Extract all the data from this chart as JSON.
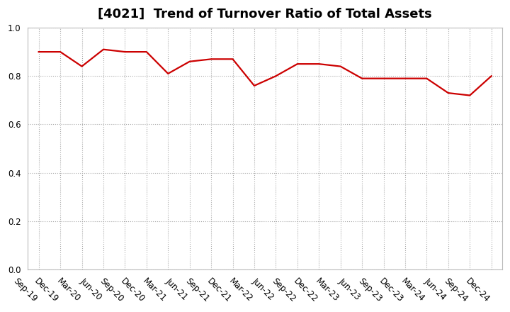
{
  "title": "[4021]  Trend of Turnover Ratio of Total Assets",
  "x_labels": [
    "Sep-19",
    "Dec-19",
    "Mar-20",
    "Jun-20",
    "Sep-20",
    "Dec-20",
    "Mar-21",
    "Jun-21",
    "Sep-21",
    "Dec-21",
    "Mar-22",
    "Jun-22",
    "Sep-22",
    "Dec-22",
    "Mar-23",
    "Jun-23",
    "Sep-23",
    "Dec-23",
    "Mar-24",
    "Jun-24",
    "Sep-24",
    "Dec-24"
  ],
  "y_values": [
    0.9,
    0.9,
    0.84,
    0.91,
    0.9,
    0.9,
    0.81,
    0.86,
    0.87,
    0.87,
    0.76,
    0.8,
    0.85,
    0.85,
    0.84,
    0.79,
    0.79,
    0.79,
    0.79,
    0.73,
    0.72,
    0.8
  ],
  "line_color": "#cc0000",
  "line_width": 1.6,
  "ylim": [
    0.0,
    1.0
  ],
  "yticks": [
    0.0,
    0.2,
    0.4,
    0.6,
    0.8,
    1.0
  ],
  "grid_color": "#aaaaaa",
  "grid_style": "dotted",
  "background_color": "#ffffff",
  "title_fontsize": 13,
  "tick_fontsize": 8.5,
  "label_rotation": -45
}
